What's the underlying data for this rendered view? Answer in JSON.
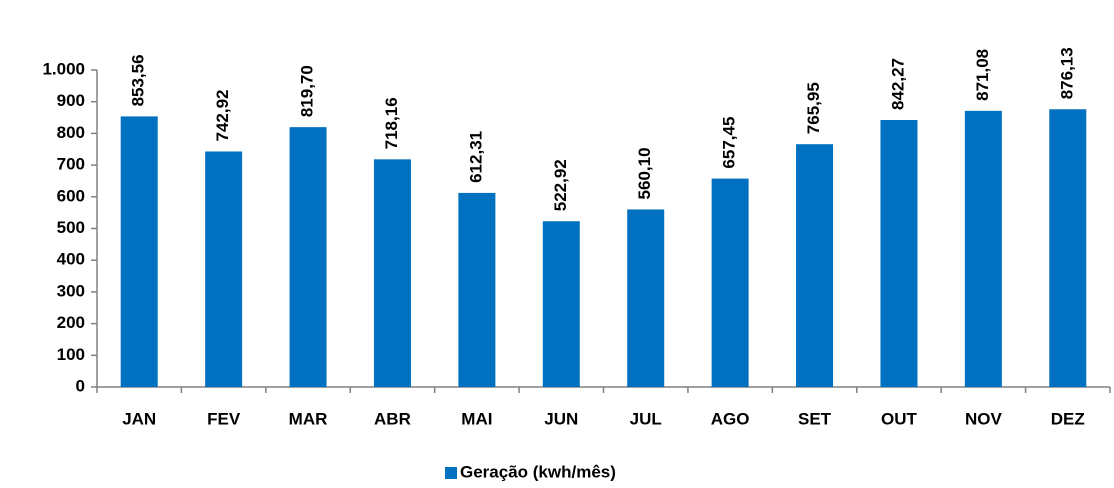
{
  "chart_data": {
    "type": "bar",
    "categories": [
      "JAN",
      "FEV",
      "MAR",
      "ABR",
      "MAI",
      "JUN",
      "JUL",
      "AGO",
      "SET",
      "OUT",
      "NOV",
      "DEZ"
    ],
    "series": [
      {
        "name": "Geração (kwh/mês)",
        "color": "#0070c0",
        "values": [
          853.56,
          742.92,
          819.7,
          718.16,
          612.31,
          522.92,
          560.1,
          657.45,
          765.95,
          842.27,
          871.08,
          876.13
        ],
        "value_labels": [
          "853,56",
          "742,92",
          "819,70",
          "718,16",
          "612,31",
          "522,92",
          "560,10",
          "657,45",
          "765,95",
          "842,27",
          "871,08",
          "876,13"
        ]
      }
    ],
    "ylim": [
      0,
      1000
    ],
    "yticks": [
      0,
      100,
      200,
      300,
      400,
      500,
      600,
      700,
      800,
      900,
      {
        "value": 1000,
        "label": "1.000"
      }
    ],
    "legend": "bottom"
  }
}
